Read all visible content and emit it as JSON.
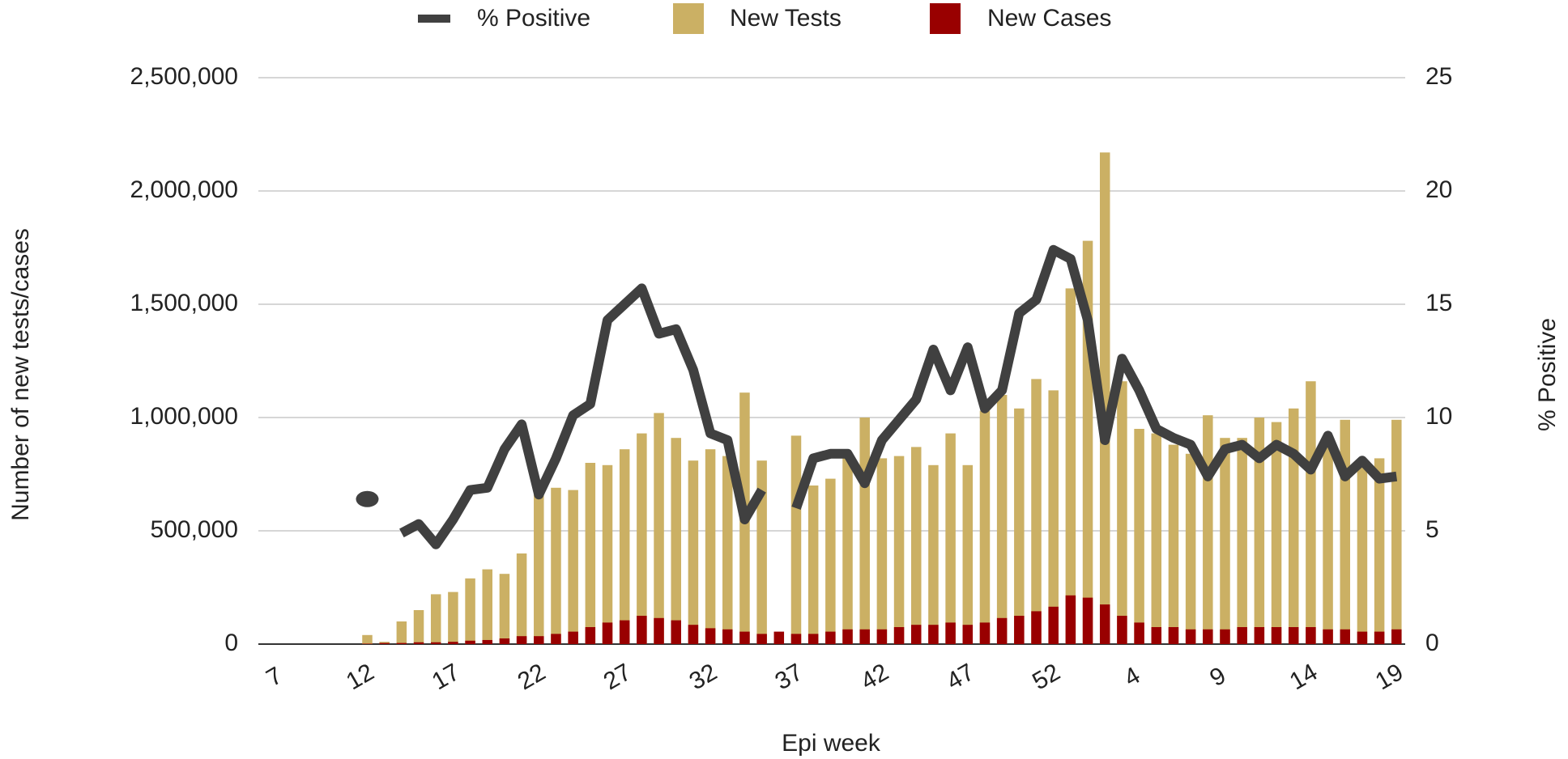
{
  "chart_data": {
    "type": "bar",
    "x_label": "Epi week",
    "y_label": "Number of new tests/cases",
    "y2_label": "% Positive",
    "legend": "top",
    "grid": true,
    "categories": [
      "7",
      null,
      null,
      null,
      null,
      "12",
      null,
      null,
      null,
      null,
      "17",
      null,
      null,
      null,
      null,
      "22",
      null,
      null,
      null,
      null,
      "27",
      null,
      null,
      null,
      null,
      "32",
      null,
      null,
      null,
      null,
      "37",
      null,
      null,
      null,
      null,
      "42",
      null,
      null,
      null,
      null,
      "47",
      null,
      null,
      null,
      null,
      "52",
      null,
      null,
      null,
      null,
      "4",
      null,
      null,
      null,
      null,
      "9",
      null,
      null,
      null,
      null,
      "14",
      null,
      null,
      null,
      null,
      "19"
    ],
    "series": [
      {
        "name": "% Positive",
        "type": "line",
        "axis": "y2",
        "color": "#404040",
        "values": [
          null,
          null,
          null,
          null,
          null,
          6.4,
          null,
          4.9,
          5.3,
          4.4,
          5.5,
          6.8,
          6.9,
          8.6,
          9.7,
          6.6,
          8.2,
          10.1,
          10.6,
          14.3,
          15.0,
          15.7,
          13.7,
          13.9,
          12.1,
          9.3,
          9.0,
          5.5,
          6.8,
          null,
          6.0,
          8.2,
          8.4,
          8.4,
          7.1,
          9.0,
          9.9,
          10.8,
          13.0,
          11.2,
          13.1,
          10.4,
          11.2,
          14.6,
          15.2,
          17.4,
          17.0,
          14.3,
          9.0,
          12.6,
          11.2,
          9.5,
          9.1,
          8.8,
          7.4,
          8.6,
          8.8,
          8.2,
          8.8,
          8.4,
          7.7,
          9.2,
          7.4,
          8.1,
          7.3,
          7.4
        ]
      },
      {
        "name": "New Tests",
        "type": "bar",
        "color": "#cbb064",
        "values": [
          0,
          0,
          0,
          0,
          0,
          40000,
          10000,
          100000,
          150000,
          220000,
          230000,
          290000,
          330000,
          310000,
          400000,
          670000,
          690000,
          680000,
          800000,
          790000,
          860000,
          930000,
          1020000,
          910000,
          810000,
          860000,
          830000,
          1110000,
          810000,
          0,
          920000,
          700000,
          730000,
          820000,
          1000000,
          820000,
          830000,
          870000,
          790000,
          930000,
          790000,
          1030000,
          1100000,
          1040000,
          1170000,
          1120000,
          1570000,
          1780000,
          2170000,
          1160000,
          950000,
          930000,
          880000,
          840000,
          1010000,
          910000,
          910000,
          1000000,
          980000,
          1040000,
          1160000,
          880000,
          990000,
          780000,
          820000,
          990000
        ]
      },
      {
        "name": "New Cases",
        "type": "bar",
        "color": "#990000",
        "values": [
          0,
          0,
          0,
          0,
          0,
          2000,
          5000,
          5000,
          8000,
          8000,
          10000,
          15000,
          18000,
          25000,
          35000,
          35000,
          45000,
          55000,
          75000,
          95000,
          105000,
          125000,
          115000,
          105000,
          85000,
          70000,
          65000,
          55000,
          45000,
          55000,
          45000,
          45000,
          55000,
          65000,
          65000,
          65000,
          75000,
          85000,
          85000,
          95000,
          85000,
          95000,
          115000,
          125000,
          145000,
          165000,
          215000,
          205000,
          175000,
          125000,
          95000,
          75000,
          75000,
          65000,
          65000,
          65000,
          75000,
          75000,
          75000,
          75000,
          75000,
          65000,
          65000,
          55000,
          55000,
          65000
        ]
      }
    ],
    "ylim": [
      0,
      2500000
    ],
    "yticks": [
      0,
      {
        "value": 500000,
        "label": "500,000"
      },
      {
        "value": 1000000,
        "label": "1,000,000"
      },
      {
        "value": 1500000,
        "label": "1,500,000"
      },
      {
        "value": 2000000,
        "label": "2,000,000"
      },
      {
        "value": 2500000,
        "label": "2,500,000"
      }
    ],
    "y2lim": [
      0,
      25
    ],
    "y2ticks": [
      0,
      5,
      10,
      15,
      20,
      25
    ]
  }
}
